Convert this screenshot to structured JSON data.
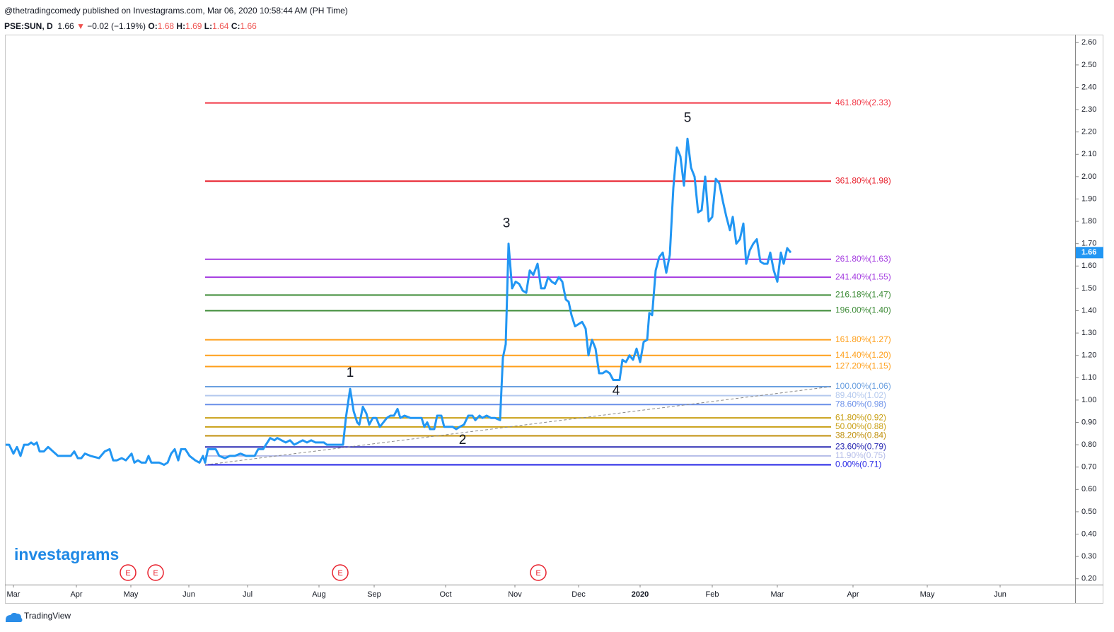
{
  "header": {
    "publisher": "@thetradingcomedy published on Investagrams.com, Mar 06, 2020 10:58:44 AM (PH Time)",
    "symbol": "PSE:SUN, D",
    "last": "1.66",
    "arrow": "▼",
    "change": "−0.02 (−1.19%)",
    "ohlc": [
      {
        "key": "O:",
        "value": "1.68"
      },
      {
        "key": "H:",
        "value": "1.69"
      },
      {
        "key": "L:",
        "value": "1.64"
      },
      {
        "key": "C:",
        "value": "1.66"
      }
    ]
  },
  "logo": "investagrams",
  "footer": "TradingView",
  "chart_data": {
    "type": "line",
    "color": "#2196f3",
    "last_value": 1.66,
    "x": [
      0,
      5,
      11,
      16,
      21,
      26,
      32,
      36,
      40,
      44,
      48,
      54,
      60,
      67,
      74,
      92,
      97,
      102,
      107,
      112,
      120,
      132,
      140,
      147,
      152,
      157,
      164,
      170,
      178,
      182,
      187,
      192,
      198,
      202,
      206,
      217,
      224,
      229,
      234,
      239,
      244,
      248,
      254,
      260,
      268,
      274,
      279,
      282,
      286,
      297,
      302,
      310,
      317,
      324,
      332,
      340,
      352,
      357,
      364,
      370,
      374,
      380,
      384,
      390,
      396,
      402,
      408,
      414,
      420,
      426,
      432,
      438,
      450,
      454,
      477,
      481,
      487,
      492,
      497,
      500,
      505,
      510,
      514,
      519,
      524,
      529,
      534,
      539,
      544,
      549,
      554,
      558,
      564,
      572,
      588,
      592,
      596,
      600,
      606,
      610,
      616,
      620,
      632,
      637,
      642,
      648,
      654,
      660,
      664,
      670,
      674,
      680,
      686,
      692,
      699,
      703,
      707,
      711,
      716,
      721,
      726,
      731,
      736,
      741,
      746,
      752,
      757,
      762,
      767,
      772,
      777,
      782,
      787,
      792,
      796,
      800,
      805,
      810,
      815,
      820,
      824,
      829,
      834,
      839,
      844,
      849,
      854,
      859,
      868,
      872,
      877,
      882,
      887,
      892,
      897,
      902,
      907,
      910,
      914,
      919,
      924,
      929,
      934,
      939,
      944,
      949,
      954,
      959,
      964,
      969,
      974,
      979,
      984,
      989,
      994,
      999,
      1004,
      1009,
      1014,
      1019,
      1024,
      1028,
      1033,
      1038,
      1043,
      1047,
      1052,
      1057,
      1062,
      1067,
      1072,
      1077,
      1081,
      1086,
      1091,
      1096,
      1100,
      1105,
      1110
    ],
    "values": [
      0.8,
      0.8,
      0.76,
      0.79,
      0.75,
      0.8,
      0.8,
      0.81,
      0.8,
      0.81,
      0.77,
      0.77,
      0.79,
      0.77,
      0.75,
      0.75,
      0.77,
      0.74,
      0.74,
      0.76,
      0.75,
      0.74,
      0.77,
      0.78,
      0.73,
      0.73,
      0.74,
      0.73,
      0.76,
      0.72,
      0.73,
      0.72,
      0.72,
      0.75,
      0.72,
      0.72,
      0.71,
      0.72,
      0.76,
      0.78,
      0.73,
      0.78,
      0.78,
      0.75,
      0.73,
      0.72,
      0.75,
      0.72,
      0.78,
      0.78,
      0.75,
      0.74,
      0.75,
      0.75,
      0.76,
      0.75,
      0.75,
      0.78,
      0.78,
      0.81,
      0.83,
      0.82,
      0.83,
      0.82,
      0.81,
      0.82,
      0.8,
      0.81,
      0.82,
      0.81,
      0.82,
      0.81,
      0.81,
      0.8,
      0.8,
      0.92,
      1.05,
      0.95,
      0.9,
      0.89,
      0.97,
      0.94,
      0.89,
      0.92,
      0.92,
      0.88,
      0.9,
      0.92,
      0.93,
      0.93,
      0.96,
      0.92,
      0.93,
      0.92,
      0.92,
      0.88,
      0.9,
      0.87,
      0.87,
      0.93,
      0.93,
      0.88,
      0.88,
      0.87,
      0.88,
      0.89,
      0.93,
      0.93,
      0.91,
      0.93,
      0.92,
      0.93,
      0.92,
      0.92,
      0.91,
      1.19,
      1.25,
      1.7,
      1.5,
      1.53,
      1.52,
      1.49,
      1.48,
      1.58,
      1.56,
      1.61,
      1.5,
      1.5,
      1.55,
      1.53,
      1.52,
      1.55,
      1.53,
      1.45,
      1.44,
      1.38,
      1.33,
      1.34,
      1.35,
      1.32,
      1.2,
      1.27,
      1.23,
      1.12,
      1.12,
      1.13,
      1.12,
      1.09,
      1.09,
      1.18,
      1.17,
      1.2,
      1.18,
      1.23,
      1.17,
      1.26,
      1.27,
      1.39,
      1.38,
      1.58,
      1.64,
      1.66,
      1.57,
      1.65,
      1.95,
      2.13,
      2.09,
      1.96,
      2.17,
      2.04,
      2.0,
      1.84,
      1.85,
      2.0,
      1.8,
      1.82,
      1.99,
      1.97,
      1.89,
      1.82,
      1.76,
      1.82,
      1.7,
      1.72,
      1.79,
      1.61,
      1.67,
      1.7,
      1.72,
      1.62,
      1.61,
      1.61,
      1.66,
      1.58,
      1.53,
      1.66,
      1.61,
      1.68,
      1.66
    ],
    "xlim": [
      0,
      1512
    ],
    "ylim": [
      0.1738,
      2.6325
    ],
    "xticks": [
      {
        "value": 11,
        "label": "Mar"
      },
      {
        "value": 100,
        "label": "Apr"
      },
      {
        "value": 177,
        "label": "May"
      },
      {
        "value": 259,
        "label": "Jun"
      },
      {
        "value": 342,
        "label": "Jul"
      },
      {
        "value": 443,
        "label": "Aug"
      },
      {
        "value": 521,
        "label": "Sep"
      },
      {
        "value": 622,
        "label": "Oct"
      },
      {
        "value": 720,
        "label": "Nov"
      },
      {
        "value": 810,
        "label": "Dec"
      },
      {
        "value": 897,
        "label": "2020"
      },
      {
        "value": 999,
        "label": "Feb"
      },
      {
        "value": 1091,
        "label": "Mar"
      },
      {
        "value": 1198,
        "label": "Apr"
      },
      {
        "value": 1303,
        "label": "May"
      },
      {
        "value": 1406,
        "label": "Jun"
      }
    ],
    "yticks": [
      {
        "value": 0.2,
        "label": "0.20"
      },
      {
        "value": 0.3,
        "label": "0.30"
      },
      {
        "value": 0.4,
        "label": "0.40"
      },
      {
        "value": 0.5,
        "label": "0.50"
      },
      {
        "value": 0.6,
        "label": "0.60"
      },
      {
        "value": 0.7,
        "label": "0.70"
      },
      {
        "value": 0.8,
        "label": "0.80"
      },
      {
        "value": 0.9,
        "label": "0.90"
      },
      {
        "value": 1.0,
        "label": "1.00"
      },
      {
        "value": 1.1,
        "label": "1.10"
      },
      {
        "value": 1.2,
        "label": "1.20"
      },
      {
        "value": 1.3,
        "label": "1.30"
      },
      {
        "value": 1.4,
        "label": "1.40"
      },
      {
        "value": 1.5,
        "label": "1.50"
      },
      {
        "value": 1.6,
        "label": "1.60"
      },
      {
        "value": 1.7,
        "label": "1.70"
      },
      {
        "value": 1.8,
        "label": "1.80"
      },
      {
        "value": 1.9,
        "label": "1.90"
      },
      {
        "value": 2.0,
        "label": "2.00"
      },
      {
        "value": 2.1,
        "label": "2.10"
      },
      {
        "value": 2.2,
        "label": "2.20"
      },
      {
        "value": 2.3,
        "label": "2.30"
      },
      {
        "value": 2.4,
        "label": "2.40"
      },
      {
        "value": 2.5,
        "label": "2.50"
      },
      {
        "value": 2.6,
        "label": "2.60"
      }
    ],
    "fib_x": [
      282,
      1167
    ],
    "fib_levels": [
      {
        "label": "461.80%(2.33)",
        "value": 2.33,
        "color": "#f23645"
      },
      {
        "label": "361.80%(1.98)",
        "value": 1.98,
        "color": "#e8222e"
      },
      {
        "label": "261.80%(1.63)",
        "value": 1.63,
        "color": "#a43ce0"
      },
      {
        "label": "241.40%(1.55)",
        "value": 1.55,
        "color": "#a43ce0"
      },
      {
        "label": "216.18%(1.47)",
        "value": 1.47,
        "color": "#3d8b37"
      },
      {
        "label": "196.00%(1.40)",
        "value": 1.4,
        "color": "#3d8b37"
      },
      {
        "label": "161.80%(1.27)",
        "value": 1.27,
        "color": "#ff9f1a"
      },
      {
        "label": "141.40%(1.20)",
        "value": 1.2,
        "color": "#ff9f1a"
      },
      {
        "label": "127.20%(1.15)",
        "value": 1.15,
        "color": "#ff9f1a"
      },
      {
        "label": "100.00%(1.06)",
        "value": 1.06,
        "color": "#6a9fe0"
      },
      {
        "label": "89.40%(1.02)",
        "value": 1.02,
        "color": "#b4c9ee"
      },
      {
        "label": "78.60%(0.98)",
        "value": 0.98,
        "color": "#6a8fe8"
      },
      {
        "label": "61.80%(0.92)",
        "value": 0.92,
        "color": "#c9a016"
      },
      {
        "label": "50.00%(0.88)",
        "value": 0.88,
        "color": "#c9a016"
      },
      {
        "label": "38.20%(0.84)",
        "value": 0.84,
        "color": "#c0900c"
      },
      {
        "label": "23.60%(0.79)",
        "value": 0.79,
        "color": "#2b2bb3"
      },
      {
        "label": "11.90%(0.75)",
        "value": 0.75,
        "color": "#b4bce8"
      },
      {
        "label": "0.00%(0.71)",
        "value": 0.71,
        "color": "#2626e6"
      }
    ],
    "trendline": {
      "x": [
        282,
        1167
      ],
      "values": [
        0.71,
        1.06
      ]
    },
    "annotations": [
      {
        "text": "1",
        "x": 487,
        "y": 1.12
      },
      {
        "text": "2",
        "x": 646,
        "y": 0.82
      },
      {
        "text": "3",
        "x": 708,
        "y": 1.79
      },
      {
        "text": "4",
        "x": 863,
        "y": 1.04
      },
      {
        "text": "5",
        "x": 964,
        "y": 2.26
      }
    ],
    "events": [
      {
        "label": "E",
        "x": 173
      },
      {
        "label": "E",
        "x": 212
      },
      {
        "label": "E",
        "x": 473
      },
      {
        "label": "E",
        "x": 753
      }
    ]
  }
}
